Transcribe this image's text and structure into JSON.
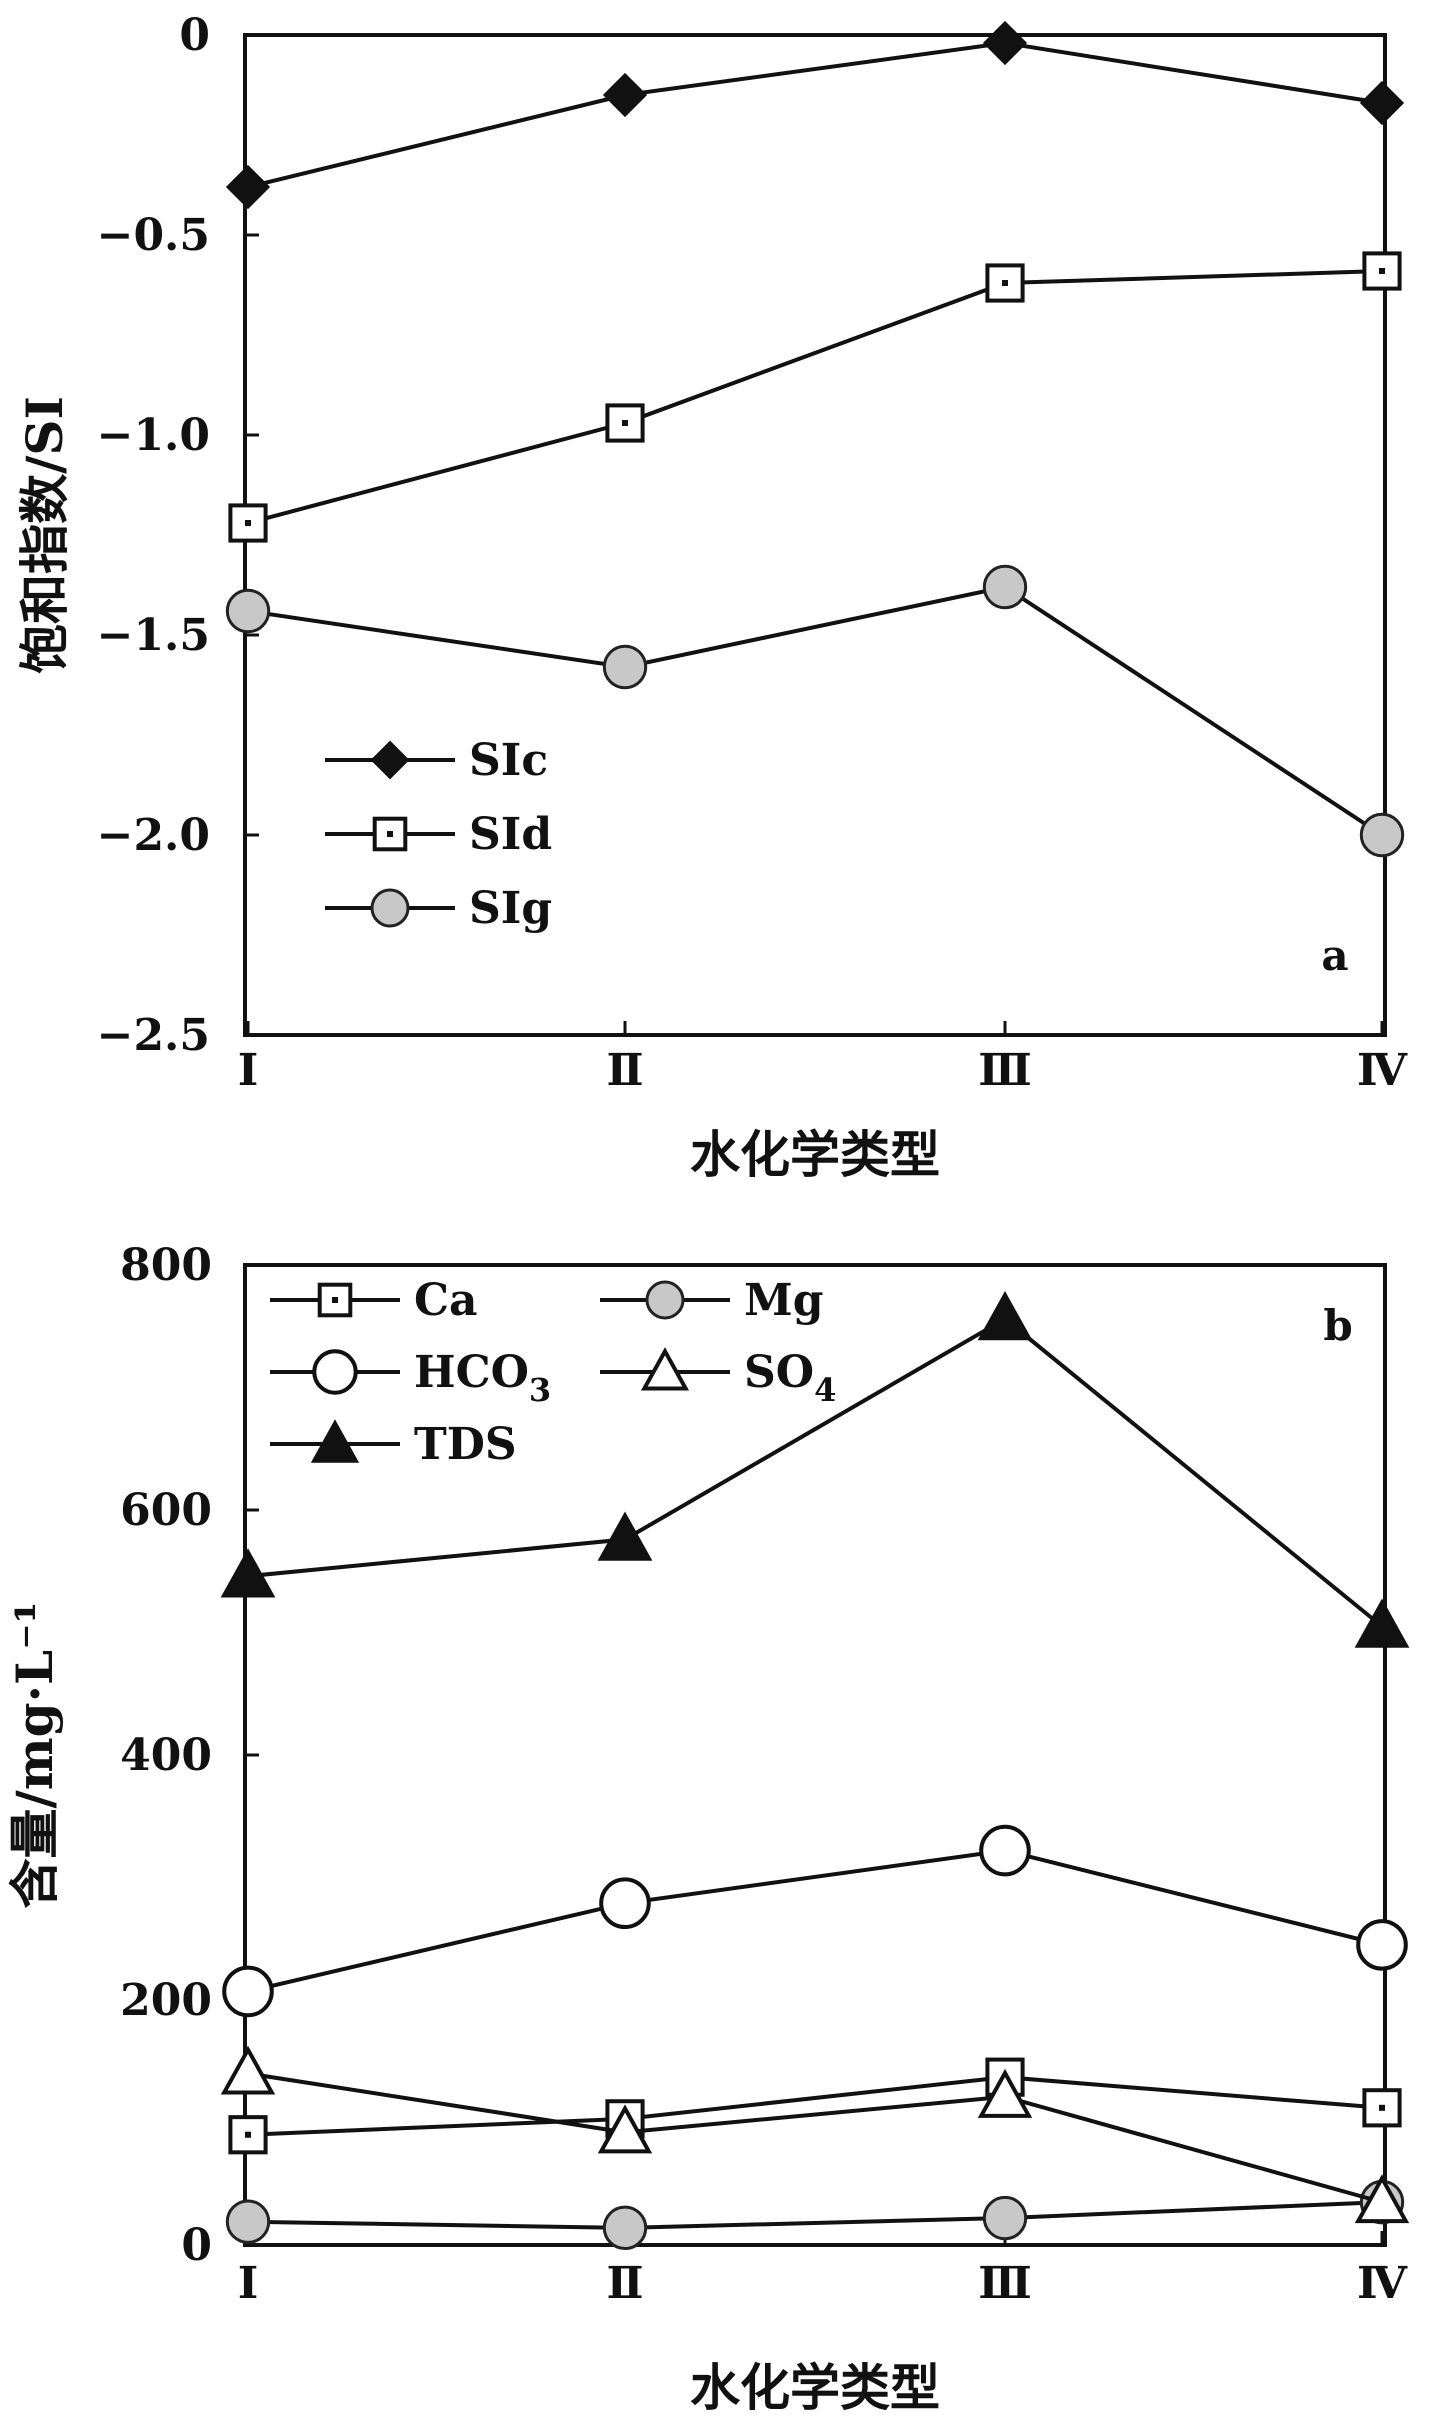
{
  "chart_data": [
    {
      "type": "line",
      "panel_label": "a",
      "categories": [
        "Ⅰ",
        "Ⅱ",
        "Ⅲ",
        "Ⅳ"
      ],
      "xlabel": "水化学类型",
      "ylabel": "饱和指数/SI",
      "ylim": [
        -2.5,
        0
      ],
      "yticks": [
        0,
        -0.5,
        -1.0,
        -1.5,
        -2.0,
        -2.5
      ],
      "ytick_labels": [
        "0",
        "−0.5",
        "−1.0",
        "−1.5",
        "−2.0",
        "−2.5"
      ],
      "grid": false,
      "legend_position": "bottom-left",
      "series": [
        {
          "name": "SIc",
          "marker": "diamond-filled",
          "values": [
            -0.38,
            -0.15,
            -0.02,
            -0.17
          ]
        },
        {
          "name": "SId",
          "marker": "square-dotted",
          "values": [
            -1.22,
            -0.97,
            -0.62,
            -0.59
          ]
        },
        {
          "name": "SIg",
          "marker": "circle-gray",
          "values": [
            -1.44,
            -1.58,
            -1.38,
            -2.0
          ]
        }
      ]
    },
    {
      "type": "line",
      "panel_label": "b",
      "categories": [
        "Ⅰ",
        "Ⅱ",
        "Ⅲ",
        "Ⅳ"
      ],
      "xlabel": "水化学类型",
      "ylabel": "含量/mg·L⁻¹",
      "ylim": [
        0,
        800
      ],
      "yticks": [
        0,
        200,
        400,
        600,
        800
      ],
      "ytick_labels": [
        "0",
        "200",
        "400",
        "600",
        "800"
      ],
      "grid": false,
      "legend_position": "top-left",
      "series": [
        {
          "name": "Ca",
          "marker": "square-dotted",
          "values": [
            90,
            103,
            137,
            112
          ]
        },
        {
          "name": "Mg",
          "marker": "circle-gray",
          "values": [
            19,
            14,
            22,
            35
          ]
        },
        {
          "name": "HCO3",
          "marker": "circle-open",
          "values": [
            207,
            279,
            322,
            245
          ]
        },
        {
          "name": "SO4",
          "marker": "triangle-open",
          "values": [
            140,
            92,
            121,
            35
          ]
        },
        {
          "name": "TDS",
          "marker": "triangle-filled",
          "values": [
            546,
            576,
            756,
            505
          ]
        }
      ]
    }
  ]
}
